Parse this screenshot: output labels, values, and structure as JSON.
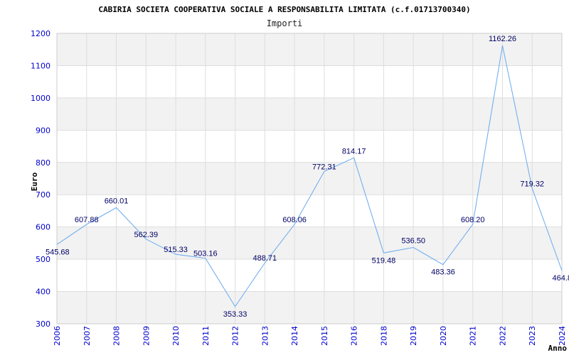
{
  "colors": {
    "axis_text": "#0000cc",
    "line": "#66aaee",
    "band": "#f2f2f2",
    "grid": "#dddddd",
    "data_label": "#000066"
  },
  "chart_data": {
    "type": "line",
    "title": "CABIRIA SOCIETA COOPERATIVA SOCIALE A RESPONSABILITA LIMITATA (c.f.01713700340)",
    "subtitle": "Importi",
    "xlabel": "Anno",
    "ylabel": "Euro",
    "ylim": [
      300,
      1200
    ],
    "yticks": [
      300,
      400,
      500,
      600,
      700,
      800,
      900,
      1000,
      1100,
      1200
    ],
    "grid": true,
    "categories": [
      "2006",
      "2007",
      "2008",
      "2009",
      "2010",
      "2011",
      "2012",
      "2013",
      "2014",
      "2015",
      "2016",
      "2018",
      "2019",
      "2020",
      "2021",
      "2022",
      "2023",
      "2024"
    ],
    "values": [
      545.68,
      607.88,
      660.01,
      562.39,
      515.33,
      503.16,
      353.33,
      488.71,
      608.06,
      772.31,
      814.17,
      519.48,
      536.5,
      483.36,
      608.2,
      1162.26,
      719.32,
      464.8
    ],
    "value_labels": [
      "545.68",
      "607.88",
      "660.01",
      "562.39",
      "515.33",
      "503.16",
      "353.33",
      "488.71",
      "608.06",
      "772.31",
      "814.17",
      "519.48",
      "536.50",
      "483.36",
      "608.20",
      "1162.26",
      "719.32",
      "464.8"
    ]
  }
}
